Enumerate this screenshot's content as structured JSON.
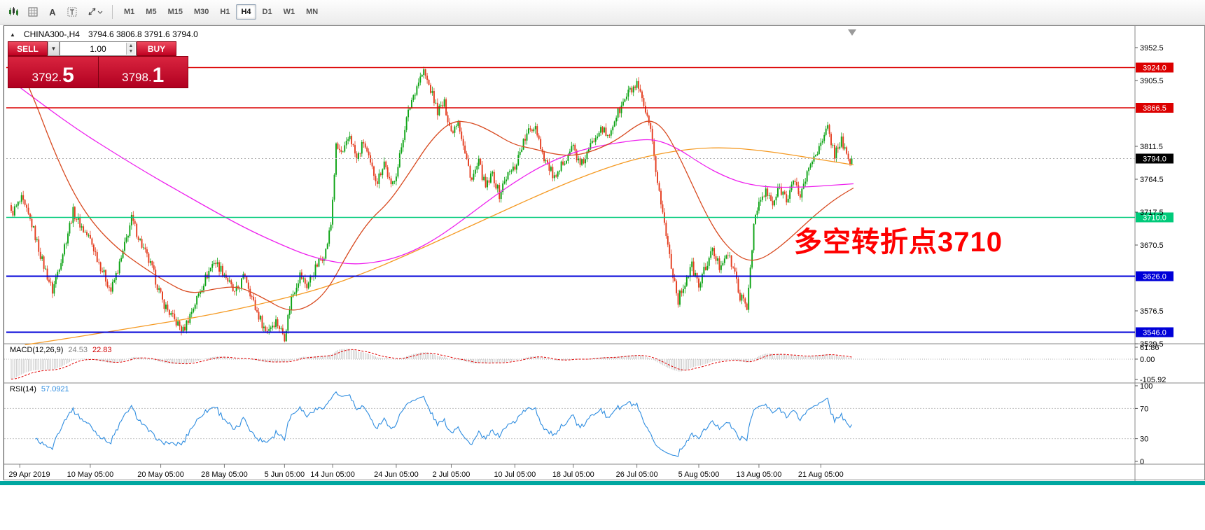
{
  "toolbar": {
    "icon_a": "A",
    "icon_t": "T",
    "timeframes": [
      {
        "label": "M1",
        "active": false
      },
      {
        "label": "M5",
        "active": false
      },
      {
        "label": "M15",
        "active": false
      },
      {
        "label": "M30",
        "active": false
      },
      {
        "label": "H1",
        "active": false
      },
      {
        "label": "H4",
        "active": true
      },
      {
        "label": "D1",
        "active": false
      },
      {
        "label": "W1",
        "active": false
      },
      {
        "label": "MN",
        "active": false
      }
    ]
  },
  "chart": {
    "collapse_icon": "▲",
    "symbol_period": "CHINA300-,H4",
    "ohlc_text": "3794.6 3806.8 3791.6 3794.0",
    "annotation": "多空转折点3710",
    "trade_panel": {
      "sell_label": "SELL",
      "buy_label": "BUY",
      "dropdown_icon": "▼",
      "volume": "1.00",
      "spin_up_icon": "▲",
      "spin_down_icon": "▼",
      "sell_price_main": "3792.",
      "sell_price_big": "5",
      "buy_price_main": "3798.",
      "buy_price_big": "1"
    },
    "macd_label": {
      "name": "MACD(12,26,9)",
      "main": "24.53",
      "signal": "22.83"
    },
    "rsi_label": {
      "name": "RSI(14)",
      "value": "57.0921"
    }
  },
  "chart_data": {
    "type": "candlestick",
    "symbol": "CHINA300-",
    "period": "H4",
    "num_bars": 490,
    "current_price": 3794.0,
    "current_price_label": "3794.0",
    "colors": {
      "up": "#0ca314",
      "down": "#e43b1d",
      "hist": "#c8c8c8",
      "signal": "#e00000",
      "rsi": "#2f8de0"
    },
    "price_path": [
      [
        0,
        3715
      ],
      [
        6,
        3735
      ],
      [
        12,
        3700
      ],
      [
        18,
        3648
      ],
      [
        24,
        3605
      ],
      [
        30,
        3660
      ],
      [
        36,
        3718
      ],
      [
        42,
        3692
      ],
      [
        46,
        3678
      ],
      [
        52,
        3640
      ],
      [
        58,
        3605
      ],
      [
        64,
        3650
      ],
      [
        70,
        3708
      ],
      [
        76,
        3670
      ],
      [
        82,
        3636
      ],
      [
        88,
        3590
      ],
      [
        94,
        3566
      ],
      [
        100,
        3548
      ],
      [
        106,
        3582
      ],
      [
        112,
        3618
      ],
      [
        118,
        3648
      ],
      [
        124,
        3630
      ],
      [
        130,
        3600
      ],
      [
        136,
        3628
      ],
      [
        142,
        3580
      ],
      [
        148,
        3548
      ],
      [
        154,
        3562
      ],
      [
        159,
        3540
      ],
      [
        163,
        3595
      ],
      [
        168,
        3628
      ],
      [
        172,
        3612
      ],
      [
        178,
        3642
      ],
      [
        183,
        3662
      ],
      [
        186,
        3700
      ],
      [
        189,
        3810
      ],
      [
        193,
        3800
      ],
      [
        197,
        3828
      ],
      [
        201,
        3792
      ],
      [
        205,
        3818
      ],
      [
        209,
        3784
      ],
      [
        213,
        3762
      ],
      [
        217,
        3790
      ],
      [
        221,
        3752
      ],
      [
        225,
        3782
      ],
      [
        229,
        3840
      ],
      [
        233,
        3878
      ],
      [
        237,
        3905
      ],
      [
        240,
        3918
      ],
      [
        244,
        3892
      ],
      [
        248,
        3862
      ],
      [
        252,
        3872
      ],
      [
        256,
        3832
      ],
      [
        260,
        3850
      ],
      [
        264,
        3800
      ],
      [
        268,
        3764
      ],
      [
        272,
        3788
      ],
      [
        276,
        3752
      ],
      [
        280,
        3772
      ],
      [
        284,
        3742
      ],
      [
        288,
        3768
      ],
      [
        293,
        3782
      ],
      [
        297,
        3812
      ],
      [
        301,
        3832
      ],
      [
        305,
        3842
      ],
      [
        309,
        3802
      ],
      [
        313,
        3780
      ],
      [
        317,
        3762
      ],
      [
        321,
        3790
      ],
      [
        327,
        3812
      ],
      [
        331,
        3782
      ],
      [
        335,
        3800
      ],
      [
        339,
        3822
      ],
      [
        343,
        3842
      ],
      [
        347,
        3822
      ],
      [
        351,
        3850
      ],
      [
        355,
        3868
      ],
      [
        359,
        3888
      ],
      [
        364,
        3898
      ],
      [
        368,
        3868
      ],
      [
        372,
        3830
      ],
      [
        376,
        3762
      ],
      [
        380,
        3700
      ],
      [
        384,
        3642
      ],
      [
        388,
        3592
      ],
      [
        392,
        3618
      ],
      [
        396,
        3640
      ],
      [
        400,
        3612
      ],
      [
        404,
        3640
      ],
      [
        408,
        3662
      ],
      [
        412,
        3640
      ],
      [
        416,
        3660
      ],
      [
        420,
        3638
      ],
      [
        424,
        3598
      ],
      [
        428,
        3580
      ],
      [
        432,
        3700
      ],
      [
        435,
        3730
      ],
      [
        439,
        3746
      ],
      [
        443,
        3728
      ],
      [
        447,
        3752
      ],
      [
        451,
        3738
      ],
      [
        455,
        3760
      ],
      [
        459,
        3742
      ],
      [
        463,
        3772
      ],
      [
        467,
        3800
      ],
      [
        471,
        3812
      ],
      [
        475,
        3838
      ],
      [
        479,
        3800
      ],
      [
        483,
        3822
      ],
      [
        487,
        3788
      ],
      [
        489,
        3794
      ]
    ],
    "ma_lines": [
      {
        "name": "ma-orange-line",
        "color": "#f59a23",
        "points": [
          [
            8,
            3528
          ],
          [
            30,
            3536
          ],
          [
            55,
            3546
          ],
          [
            80,
            3556
          ],
          [
            105,
            3566
          ],
          [
            130,
            3578
          ],
          [
            155,
            3592
          ],
          [
            180,
            3608
          ],
          [
            205,
            3630
          ],
          [
            230,
            3656
          ],
          [
            255,
            3684
          ],
          [
            280,
            3712
          ],
          [
            305,
            3740
          ],
          [
            330,
            3766
          ],
          [
            355,
            3788
          ],
          [
            375,
            3800
          ],
          [
            395,
            3808
          ],
          [
            415,
            3810
          ],
          [
            435,
            3806
          ],
          [
            455,
            3799
          ],
          [
            472,
            3792
          ],
          [
            490,
            3785
          ]
        ]
      },
      {
        "name": "ma-magenta-line",
        "color": "#ee22ee",
        "points": [
          [
            0,
            3905
          ],
          [
            20,
            3868
          ],
          [
            40,
            3833
          ],
          [
            60,
            3802
          ],
          [
            80,
            3772
          ],
          [
            100,
            3744
          ],
          [
            120,
            3716
          ],
          [
            140,
            3690
          ],
          [
            158,
            3670
          ],
          [
            172,
            3656
          ],
          [
            186,
            3647
          ],
          [
            198,
            3643
          ],
          [
            210,
            3645
          ],
          [
            222,
            3651
          ],
          [
            234,
            3662
          ],
          [
            246,
            3678
          ],
          [
            258,
            3698
          ],
          [
            270,
            3720
          ],
          [
            282,
            3742
          ],
          [
            294,
            3762
          ],
          [
            306,
            3780
          ],
          [
            318,
            3794
          ],
          [
            330,
            3805
          ],
          [
            342,
            3812
          ],
          [
            354,
            3817
          ],
          [
            366,
            3821
          ],
          [
            374,
            3821
          ],
          [
            382,
            3815
          ],
          [
            390,
            3805
          ],
          [
            398,
            3792
          ],
          [
            406,
            3780
          ],
          [
            414,
            3770
          ],
          [
            422,
            3762
          ],
          [
            430,
            3757
          ],
          [
            438,
            3754
          ],
          [
            446,
            3753
          ],
          [
            456,
            3753
          ],
          [
            466,
            3754
          ],
          [
            478,
            3756
          ],
          [
            490,
            3758
          ]
        ]
      },
      {
        "name": "ma-red-line",
        "color": "#d84a20",
        "points": [
          [
            0,
            3952
          ],
          [
            12,
            3888
          ],
          [
            24,
            3810
          ],
          [
            36,
            3745
          ],
          [
            48,
            3700
          ],
          [
            62,
            3665
          ],
          [
            76,
            3640
          ],
          [
            90,
            3618
          ],
          [
            104,
            3600
          ],
          [
            118,
            3608
          ],
          [
            132,
            3612
          ],
          [
            146,
            3596
          ],
          [
            160,
            3576
          ],
          [
            172,
            3580
          ],
          [
            184,
            3605
          ],
          [
            196,
            3660
          ],
          [
            208,
            3705
          ],
          [
            220,
            3732
          ],
          [
            232,
            3775
          ],
          [
            244,
            3820
          ],
          [
            256,
            3848
          ],
          [
            268,
            3846
          ],
          [
            280,
            3832
          ],
          [
            292,
            3814
          ],
          [
            304,
            3808
          ],
          [
            316,
            3800
          ],
          [
            328,
            3798
          ],
          [
            340,
            3806
          ],
          [
            352,
            3820
          ],
          [
            364,
            3842
          ],
          [
            372,
            3850
          ],
          [
            380,
            3836
          ],
          [
            388,
            3800
          ],
          [
            396,
            3758
          ],
          [
            404,
            3716
          ],
          [
            412,
            3682
          ],
          [
            420,
            3660
          ],
          [
            428,
            3648
          ],
          [
            436,
            3650
          ],
          [
            444,
            3662
          ],
          [
            452,
            3678
          ],
          [
            460,
            3696
          ],
          [
            468,
            3714
          ],
          [
            476,
            3730
          ],
          [
            483,
            3742
          ],
          [
            490,
            3752
          ]
        ]
      }
    ],
    "levels": [
      {
        "value": 3924.0,
        "label": "3924.0",
        "color": "#dc0000",
        "width": 1.4
      },
      {
        "value": 3866.5,
        "label": "3866.5",
        "color": "#dc0000",
        "width": 1.4
      },
      {
        "value": 3710.0,
        "label": "3710.0",
        "color": "#00ca7a",
        "width": 1.6
      },
      {
        "value": 3626.0,
        "label": "3626.0",
        "color": "#0000d8",
        "width": 2
      },
      {
        "value": 3546.0,
        "label": "3546.0",
        "color": "#0000d8",
        "width": 2
      }
    ],
    "y_ticks": [
      3952.5,
      3905.5,
      3811.5,
      3764.5,
      3717.5,
      3670.5,
      3576.5,
      3529.5
    ],
    "x_axis": [
      {
        "label": "29 Apr 2019",
        "bar": 5
      },
      {
        "label": "10 May 05:00",
        "bar": 46
      },
      {
        "label": "20 May 05:00",
        "bar": 87
      },
      {
        "label": "28 May 05:00",
        "bar": 124
      },
      {
        "label": "5 Jun 05:00",
        "bar": 159
      },
      {
        "label": "14 Jun 05:00",
        "bar": 187
      },
      {
        "label": "24 Jun 05:00",
        "bar": 224
      },
      {
        "label": "2 Jul 05:00",
        "bar": 256
      },
      {
        "label": "10 Jul 05:00",
        "bar": 293
      },
      {
        "label": "18 Jul 05:00",
        "bar": 327
      },
      {
        "label": "26 Jul 05:00",
        "bar": 364
      },
      {
        "label": "5 Aug 05:00",
        "bar": 400
      },
      {
        "label": "13 Aug 05:00",
        "bar": 435
      },
      {
        "label": "21 Aug 05:00",
        "bar": 471
      }
    ],
    "macd": {
      "params": "12,26,9",
      "value": 24.53,
      "signal_value": 22.83,
      "seed_fast": 3800,
      "seed_slow": 3905,
      "axis": [
        {
          "text": "61.86",
          "value": 61.86
        },
        {
          "text": "0.00",
          "value": 0
        },
        {
          "text": "-105.92",
          "value": -105.92
        }
      ]
    },
    "rsi": {
      "period": 14,
      "value": 57.0921,
      "levels": [
        70,
        30
      ],
      "axis": [
        {
          "text": "100",
          "value": 100
        },
        {
          "text": "70",
          "value": 70
        },
        {
          "text": "30",
          "value": 30
        },
        {
          "text": "0",
          "value": 0
        }
      ]
    }
  }
}
